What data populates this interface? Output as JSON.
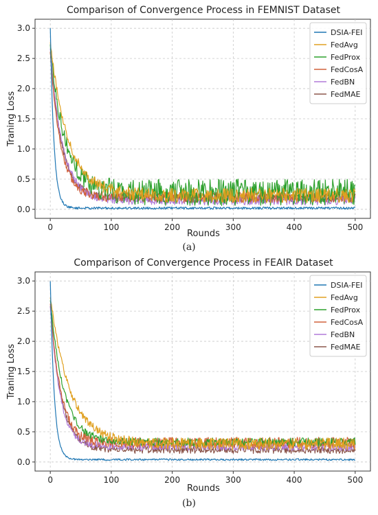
{
  "colors": {
    "DSIA-FEI": "#1f77b4",
    "FedAvg": "#e0a020",
    "FedProx": "#2ca02c",
    "FedCosA": "#d0603a",
    "FedBN": "#b07ad8",
    "FedMAE": "#8c564b"
  },
  "chart_data": [
    {
      "type": "line",
      "panel_label": "(a)",
      "title": "Comparison of Convergence Process in FEMNIST Dataset",
      "xlabel": "Rounds",
      "ylabel": "Traning Loss",
      "xlim": [
        -25,
        525
      ],
      "ylim": [
        -0.15,
        3.15
      ],
      "xticks": [
        0,
        100,
        200,
        300,
        400,
        500
      ],
      "yticks": [
        0.0,
        0.5,
        1.0,
        1.5,
        2.0,
        2.5,
        3.0
      ],
      "grid": true,
      "legend_position": "top-right",
      "legend": [
        "DSIA-FEI",
        "FedAvg",
        "FedProx",
        "FedCosA",
        "FedBN",
        "FedMAE"
      ],
      "series": [
        {
          "name": "DSIA-FEI",
          "curve": {
            "start": 3.0,
            "tau": 6.0,
            "floor": 0.02,
            "noise": 0.02
          },
          "anchors": [
            [
              0,
              3.0
            ],
            [
              10,
              0.55
            ],
            [
              20,
              0.12
            ],
            [
              30,
              0.03
            ],
            [
              50,
              0.02
            ],
            [
              100,
              0.02
            ],
            [
              300,
              0.02
            ],
            [
              500,
              0.02
            ]
          ]
        },
        {
          "name": "FedAvg",
          "curve": {
            "start": 2.75,
            "tau": 30,
            "floor": 0.23,
            "noise": 0.12
          },
          "anchors": [
            [
              0,
              2.75
            ],
            [
              25,
              1.55
            ],
            [
              50,
              0.85
            ],
            [
              75,
              0.5
            ],
            [
              100,
              0.32
            ],
            [
              150,
              0.24
            ],
            [
              300,
              0.23
            ],
            [
              500,
              0.23
            ]
          ]
        },
        {
          "name": "FedProx",
          "curve": {
            "start": 2.7,
            "tau": 24,
            "floor": 0.28,
            "noise": 0.22
          },
          "anchors": [
            [
              0,
              2.7
            ],
            [
              25,
              1.35
            ],
            [
              50,
              0.7
            ],
            [
              75,
              0.4
            ],
            [
              100,
              0.3
            ],
            [
              150,
              0.28
            ],
            [
              300,
              0.28
            ],
            [
              500,
              0.28
            ]
          ]
        },
        {
          "name": "FedCosA",
          "curve": {
            "start": 2.6,
            "tau": 17,
            "floor": 0.2,
            "noise": 0.09
          },
          "anchors": [
            [
              0,
              2.6
            ],
            [
              25,
              0.95
            ],
            [
              50,
              0.45
            ],
            [
              75,
              0.26
            ],
            [
              100,
              0.21
            ],
            [
              300,
              0.2
            ],
            [
              500,
              0.2
            ]
          ]
        },
        {
          "name": "FedBN",
          "curve": {
            "start": 2.65,
            "tau": 20,
            "floor": 0.15,
            "noise": 0.08
          },
          "anchors": [
            [
              0,
              2.65
            ],
            [
              25,
              1.05
            ],
            [
              50,
              0.45
            ],
            [
              75,
              0.24
            ],
            [
              100,
              0.17
            ],
            [
              300,
              0.15
            ],
            [
              500,
              0.15
            ]
          ]
        },
        {
          "name": "FedMAE",
          "curve": {
            "start": 2.6,
            "tau": 19,
            "floor": 0.19,
            "noise": 0.07
          },
          "anchors": [
            [
              0,
              2.6
            ],
            [
              25,
              1.0
            ],
            [
              50,
              0.45
            ],
            [
              75,
              0.27
            ],
            [
              100,
              0.21
            ],
            [
              300,
              0.19
            ],
            [
              500,
              0.19
            ]
          ]
        }
      ]
    },
    {
      "type": "line",
      "panel_label": "(b)",
      "title": "Comparison of Convergence Process in FEAIR Dataset",
      "xlabel": "Rounds",
      "ylabel": "Traning Loss",
      "xlim": [
        -25,
        525
      ],
      "ylim": [
        -0.15,
        3.15
      ],
      "xticks": [
        0,
        100,
        200,
        300,
        400,
        500
      ],
      "yticks": [
        0.0,
        0.5,
        1.0,
        1.5,
        2.0,
        2.5,
        3.0
      ],
      "grid": true,
      "legend_position": "top-right",
      "legend": [
        "DSIA-FEI",
        "FedAvg",
        "FedProx",
        "FedCosA",
        "FedBN",
        "FedMAE"
      ],
      "series": [
        {
          "name": "DSIA-FEI",
          "curve": {
            "start": 3.0,
            "tau": 6.5,
            "floor": 0.04,
            "noise": 0.015
          },
          "anchors": [
            [
              0,
              3.0
            ],
            [
              10,
              0.6
            ],
            [
              20,
              0.12
            ],
            [
              30,
              0.02
            ],
            [
              50,
              0.04
            ],
            [
              100,
              0.04
            ],
            [
              300,
              0.04
            ],
            [
              500,
              0.04
            ]
          ]
        },
        {
          "name": "FedAvg",
          "curve": {
            "start": 2.75,
            "tau": 32,
            "floor": 0.3,
            "noise": 0.1
          },
          "anchors": [
            [
              0,
              2.75
            ],
            [
              25,
              1.7
            ],
            [
              50,
              1.0
            ],
            [
              75,
              0.65
            ],
            [
              100,
              0.36
            ],
            [
              150,
              0.31
            ],
            [
              300,
              0.3
            ],
            [
              500,
              0.3
            ]
          ]
        },
        {
          "name": "FedProx",
          "curve": {
            "start": 2.7,
            "tau": 22,
            "floor": 0.33,
            "noise": 0.07
          },
          "anchors": [
            [
              0,
              2.7
            ],
            [
              25,
              1.25
            ],
            [
              50,
              0.7
            ],
            [
              75,
              0.45
            ],
            [
              100,
              0.35
            ],
            [
              300,
              0.33
            ],
            [
              500,
              0.33
            ]
          ]
        },
        {
          "name": "FedCosA",
          "curve": {
            "start": 2.65,
            "tau": 17,
            "floor": 0.32,
            "noise": 0.09
          },
          "anchors": [
            [
              0,
              2.65
            ],
            [
              25,
              1.05
            ],
            [
              50,
              0.5
            ],
            [
              75,
              0.35
            ],
            [
              100,
              0.32
            ],
            [
              300,
              0.32
            ],
            [
              500,
              0.32
            ]
          ]
        },
        {
          "name": "FedBN",
          "curve": {
            "start": 2.6,
            "tau": 16,
            "floor": 0.26,
            "noise": 0.07
          },
          "anchors": [
            [
              0,
              2.6
            ],
            [
              25,
              0.95
            ],
            [
              50,
              0.4
            ],
            [
              75,
              0.28
            ],
            [
              100,
              0.26
            ],
            [
              300,
              0.26
            ],
            [
              500,
              0.26
            ]
          ]
        },
        {
          "name": "FedMAE",
          "curve": {
            "start": 2.6,
            "tau": 18,
            "floor": 0.2,
            "noise": 0.06
          },
          "anchors": [
            [
              0,
              2.6
            ],
            [
              25,
              1.0
            ],
            [
              50,
              0.42
            ],
            [
              75,
              0.25
            ],
            [
              100,
              0.21
            ],
            [
              300,
              0.2
            ],
            [
              500,
              0.2
            ]
          ]
        }
      ]
    }
  ]
}
